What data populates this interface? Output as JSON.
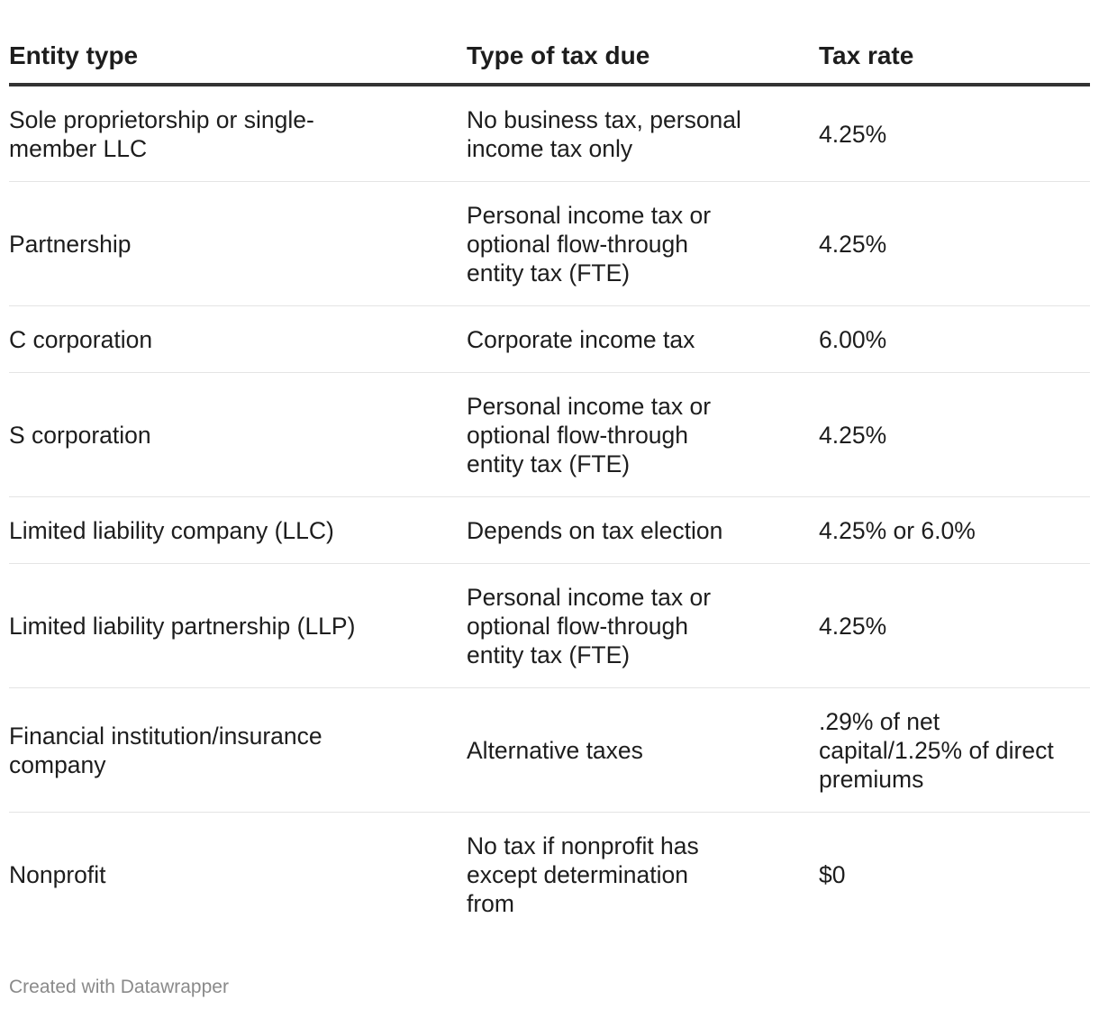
{
  "table": {
    "headers": [
      "Entity type",
      "Type of tax due",
      "Tax rate"
    ],
    "rows": [
      [
        "Sole proprietorship or single-member LLC",
        "No business tax, personal income tax only",
        "4.25%"
      ],
      [
        "Partnership",
        "Personal income tax or optional flow-through entity tax (FTE)",
        "4.25%"
      ],
      [
        "C corporation",
        "Corporate income tax",
        "6.00%"
      ],
      [
        "S corporation",
        "Personal income tax or optional flow-through entity tax (FTE)",
        "4.25%"
      ],
      [
        "Limited liability company (LLC)",
        "Depends on tax election",
        "4.25% or 6.0%"
      ],
      [
        "Limited liability partnership (LLP)",
        "Personal income tax or optional flow-through entity tax (FTE)",
        "4.25%"
      ],
      [
        "Financial institution/insurance company",
        "Alternative taxes",
        ".29% of net capital/1.25% of direct premiums"
      ],
      [
        "Nonprofit",
        "No tax if nonprofit has except determination from",
        "$0"
      ]
    ]
  },
  "footer": {
    "credit": "Created with Datawrapper"
  }
}
